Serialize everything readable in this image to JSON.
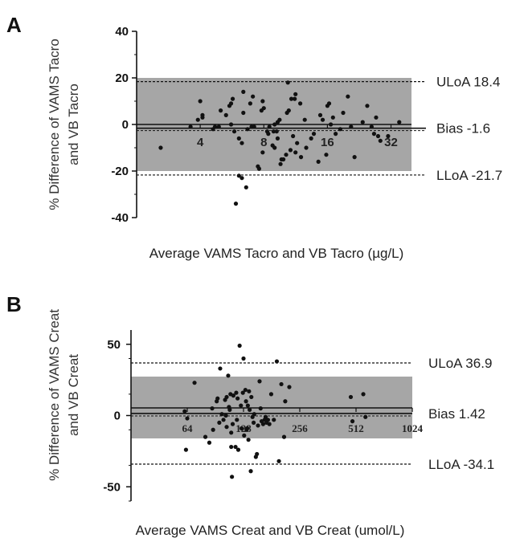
{
  "chart_data": [
    {
      "panel": "A",
      "type": "scatter",
      "xlabel": "Average VAMS Tacro and VB Tacro (µg/L)",
      "ylabel_lines": [
        "% Difference of VAMS Tacro",
        "and VB Tacro"
      ],
      "y_ticks": [
        "40",
        "20",
        "0",
        "-20",
        "-40"
      ],
      "ylim": [
        -40,
        40
      ],
      "x_scale": "log2",
      "xlim": [
        2,
        40
      ],
      "x_ticks": [
        "4",
        "8",
        "16",
        "32"
      ],
      "shaded_band": [
        -20,
        20
      ],
      "reference_lines": [
        {
          "label": "ULoA 18.4",
          "value": 18.4
        },
        {
          "label": "Bias -1.6",
          "value": -1.6
        },
        {
          "label": "LLoA -21.7",
          "value": -21.7
        }
      ],
      "points": [
        [
          2.6,
          -10
        ],
        [
          3.6,
          -1
        ],
        [
          3.9,
          2
        ],
        [
          4.0,
          10
        ],
        [
          4.1,
          4
        ],
        [
          4.1,
          3
        ],
        [
          4.6,
          -2
        ],
        [
          4.7,
          -1
        ],
        [
          4.9,
          -1
        ],
        [
          5.0,
          6
        ],
        [
          5.3,
          4
        ],
        [
          5.5,
          8
        ],
        [
          5.6,
          9
        ],
        [
          5.6,
          0
        ],
        [
          5.7,
          11
        ],
        [
          5.8,
          -3
        ],
        [
          5.9,
          -34
        ],
        [
          6.1,
          -22
        ],
        [
          6.1,
          -6
        ],
        [
          6.3,
          -23
        ],
        [
          6.3,
          -8
        ],
        [
          6.4,
          5
        ],
        [
          6.4,
          14
        ],
        [
          6.6,
          -27
        ],
        [
          6.7,
          -2
        ],
        [
          6.9,
          9
        ],
        [
          7.0,
          -1
        ],
        [
          7.1,
          12
        ],
        [
          7.2,
          -1
        ],
        [
          7.5,
          -18
        ],
        [
          7.6,
          -19
        ],
        [
          7.8,
          6
        ],
        [
          7.9,
          10
        ],
        [
          7.9,
          -12
        ],
        [
          8.0,
          7
        ],
        [
          8.3,
          -3
        ],
        [
          8.4,
          -4
        ],
        [
          8.5,
          -1
        ],
        [
          8.8,
          -9
        ],
        [
          8.9,
          -3
        ],
        [
          9.0,
          0
        ],
        [
          9.0,
          -10
        ],
        [
          9.2,
          -3
        ],
        [
          9.3,
          -6
        ],
        [
          9.3,
          1
        ],
        [
          9.5,
          2
        ],
        [
          9.6,
          -17
        ],
        [
          9.7,
          -15
        ],
        [
          9.9,
          -15
        ],
        [
          10.2,
          -13
        ],
        [
          10.3,
          5
        ],
        [
          10.4,
          18
        ],
        [
          10.5,
          6
        ],
        [
          10.7,
          -11
        ],
        [
          10.8,
          11
        ],
        [
          11.0,
          -5
        ],
        [
          11.2,
          11
        ],
        [
          11.3,
          -12
        ],
        [
          11.3,
          13
        ],
        [
          11.5,
          -8
        ],
        [
          11.9,
          9
        ],
        [
          12.0,
          -14
        ],
        [
          12.5,
          2
        ],
        [
          12.7,
          -10
        ],
        [
          13.4,
          -6
        ],
        [
          13.8,
          -4
        ],
        [
          14.5,
          -16
        ],
        [
          14.8,
          4
        ],
        [
          15.2,
          2
        ],
        [
          15.8,
          -13
        ],
        [
          16.0,
          8
        ],
        [
          16.3,
          9
        ],
        [
          16.6,
          0
        ],
        [
          17.0,
          3
        ],
        [
          17.5,
          -4
        ],
        [
          18.4,
          -2
        ],
        [
          19.0,
          5
        ],
        [
          20.0,
          12
        ],
        [
          20.7,
          -1
        ],
        [
          21.5,
          -14
        ],
        [
          23.5,
          1
        ],
        [
          24.7,
          8
        ],
        [
          25.9,
          -1
        ],
        [
          26.6,
          -4
        ],
        [
          27.2,
          3
        ],
        [
          27.8,
          -5
        ],
        [
          28.5,
          -7
        ],
        [
          31.0,
          -5
        ],
        [
          35.0,
          1
        ]
      ]
    },
    {
      "panel": "B",
      "type": "scatter",
      "xlabel": "Average VAMS Creat and VB Creat (umol/L)",
      "ylabel_lines": [
        "% Difference of VAMS Creat",
        "and VB Creat"
      ],
      "y_ticks": [
        "50",
        "0",
        "-50"
      ],
      "ylim": [
        -60,
        60
      ],
      "x_scale": "log2",
      "xlim": [
        32,
        1024
      ],
      "x_ticks": [
        "64",
        "128",
        "256",
        "512",
        "1024"
      ],
      "shaded_band": [
        -20,
        20
      ],
      "reference_lines": [
        {
          "label": "ULoA 36.9",
          "value": 36.9
        },
        {
          "label": "Bias 1.42",
          "value": 1.42
        },
        {
          "label": "LLoA -34.1",
          "value": -34.1
        }
      ],
      "points": [
        [
          62,
          3
        ],
        [
          63,
          -24
        ],
        [
          64,
          -2
        ],
        [
          70,
          23
        ],
        [
          80,
          -15
        ],
        [
          84,
          -19
        ],
        [
          87,
          5
        ],
        [
          88,
          -10
        ],
        [
          92,
          10
        ],
        [
          93,
          12
        ],
        [
          95,
          -5
        ],
        [
          96,
          33
        ],
        [
          98,
          1
        ],
        [
          100,
          -3
        ],
        [
          102,
          11
        ],
        [
          103,
          0
        ],
        [
          104,
          13
        ],
        [
          104,
          -8
        ],
        [
          106,
          28
        ],
        [
          107,
          6
        ],
        [
          108,
          4
        ],
        [
          109,
          15
        ],
        [
          110,
          -12
        ],
        [
          110,
          -22
        ],
        [
          111,
          -43
        ],
        [
          112,
          -6
        ],
        [
          113,
          14
        ],
        [
          116,
          -22
        ],
        [
          117,
          16
        ],
        [
          118,
          -3
        ],
        [
          119,
          12
        ],
        [
          120,
          -24
        ],
        [
          122,
          49
        ],
        [
          124,
          7
        ],
        [
          125,
          -9
        ],
        [
          127,
          16
        ],
        [
          128,
          40
        ],
        [
          129,
          -14
        ],
        [
          131,
          18
        ],
        [
          132,
          10
        ],
        [
          133,
          -10
        ],
        [
          134,
          -9
        ],
        [
          135,
          7
        ],
        [
          136,
          -17
        ],
        [
          137,
          17
        ],
        [
          138,
          4
        ],
        [
          140,
          -39
        ],
        [
          141,
          13
        ],
        [
          143,
          -1
        ],
        [
          145,
          -5
        ],
        [
          146,
          1
        ],
        [
          149,
          -29
        ],
        [
          151,
          -27
        ],
        [
          153,
          -7
        ],
        [
          156,
          24
        ],
        [
          158,
          5
        ],
        [
          160,
          -4
        ],
        [
          163,
          -6
        ],
        [
          166,
          -3
        ],
        [
          168,
          -1
        ],
        [
          170,
          -5
        ],
        [
          173,
          -3
        ],
        [
          176,
          -6
        ],
        [
          180,
          15
        ],
        [
          186,
          -3
        ],
        [
          193,
          38
        ],
        [
          198,
          -32
        ],
        [
          204,
          22
        ],
        [
          211,
          -15
        ],
        [
          214,
          10
        ],
        [
          225,
          20
        ],
        [
          480,
          13
        ],
        [
          490,
          -4
        ],
        [
          560,
          15
        ],
        [
          575,
          -1
        ]
      ]
    }
  ]
}
